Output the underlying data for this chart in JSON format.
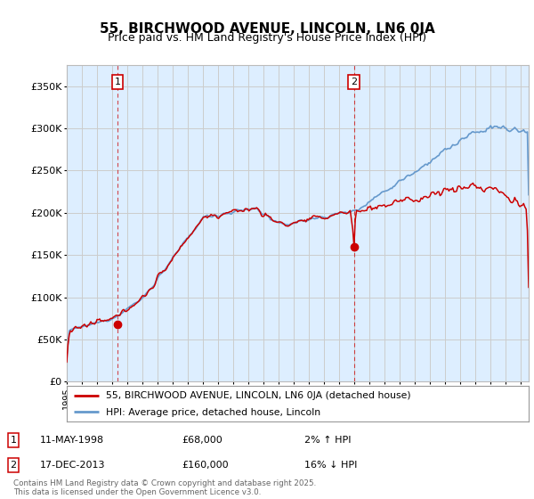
{
  "title": "55, BIRCHWOOD AVENUE, LINCOLN, LN6 0JA",
  "subtitle": "Price paid vs. HM Land Registry's House Price Index (HPI)",
  "ylabel_ticks": [
    "£0",
    "£50K",
    "£100K",
    "£150K",
    "£200K",
    "£250K",
    "£300K",
    "£350K"
  ],
  "ytick_values": [
    0,
    50000,
    100000,
    150000,
    200000,
    250000,
    300000,
    350000
  ],
  "ylim": [
    0,
    375000
  ],
  "xlim_start": 1995.0,
  "xlim_end": 2025.5,
  "marker1_x": 1998.36,
  "marker1_y": 68000,
  "marker2_x": 2013.96,
  "marker2_y": 160000,
  "annotation1": {
    "label": "1",
    "date": "11-MAY-1998",
    "price": "£68,000",
    "hpi": "2% ↑ HPI"
  },
  "annotation2": {
    "label": "2",
    "date": "17-DEC-2013",
    "price": "£160,000",
    "hpi": "16% ↓ HPI"
  },
  "legend1": "55, BIRCHWOOD AVENUE, LINCOLN, LN6 0JA (detached house)",
  "legend2": "HPI: Average price, detached house, Lincoln",
  "footer": "Contains HM Land Registry data © Crown copyright and database right 2025.\nThis data is licensed under the Open Government Licence v3.0.",
  "red_color": "#cc0000",
  "blue_color": "#6699cc",
  "bg_fill": "#ddeeff",
  "marker_line_color": "#cc0000",
  "grid_color": "#cccccc",
  "background_color": "#ffffff"
}
